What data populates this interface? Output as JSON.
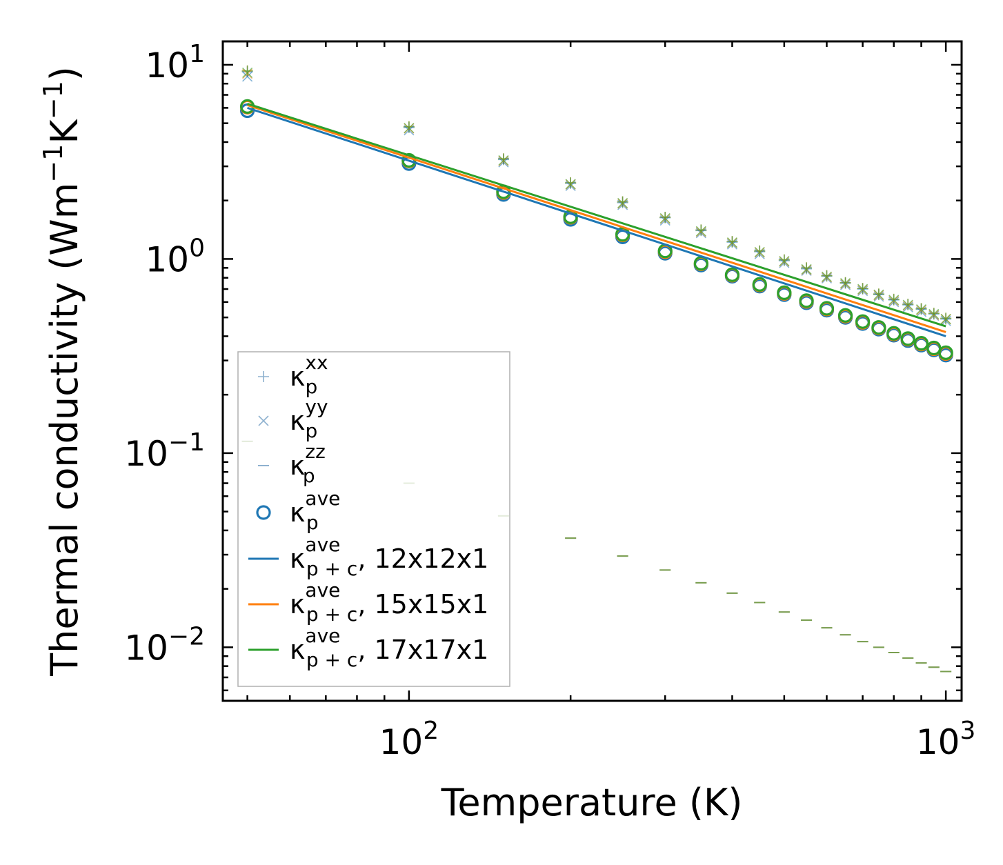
{
  "chart_data": {
    "type": "scatter",
    "xscale": "log",
    "yscale": "log",
    "xlim": [
      45,
      1070
    ],
    "ylim": [
      0.0053,
      13.2
    ],
    "xlabel": "Temperature (K)",
    "ylabel": {
      "text": "Thermal conductivity (Wm",
      "exp1": "−1",
      "mid": "K",
      "exp2": "−1",
      "close": ")"
    },
    "x_ticks": [
      {
        "value": 100,
        "base": "10",
        "exp": "2"
      },
      {
        "value": 1000,
        "base": "10",
        "exp": "3"
      }
    ],
    "y_ticks": [
      {
        "value": 10,
        "base": "10",
        "exp": "1"
      },
      {
        "value": 1,
        "base": "10",
        "exp": "0"
      },
      {
        "value": 0.1,
        "base": "10",
        "exp": "−1"
      },
      {
        "value": 0.01,
        "base": "10",
        "exp": "−2"
      }
    ],
    "x": [
      50,
      100,
      150,
      200,
      250,
      300,
      350,
      400,
      450,
      500,
      550,
      600,
      650,
      700,
      750,
      800,
      850,
      900,
      950,
      1000
    ],
    "series": [
      {
        "name": "kxx",
        "marker": "plus",
        "values": [
          9.2,
          4.75,
          3.25,
          2.45,
          1.95,
          1.63,
          1.4,
          1.22,
          1.09,
          0.98,
          0.89,
          0.815,
          0.75,
          0.7,
          0.655,
          0.615,
          0.58,
          0.55,
          0.52,
          0.49
        ],
        "groups": [
          {
            "color": "#1f77b4",
            "values": [
              9.2,
              4.75,
              3.25,
              2.45,
              1.95,
              1.63,
              1.4,
              1.22,
              1.09,
              0.98,
              0.89,
              0.815,
              0.75,
              0.7,
              0.655,
              0.615,
              0.58,
              0.55,
              0.52,
              0.49
            ]
          },
          {
            "color": "#ff7f0e",
            "values": [
              9.3,
              4.8,
              3.28,
              2.47,
              1.97,
              1.64,
              1.41,
              1.23,
              1.1,
              0.99,
              0.9,
              0.82,
              0.755,
              0.705,
              0.66,
              0.62,
              0.585,
              0.555,
              0.525,
              0.495
            ]
          },
          {
            "color": "#2ca02c",
            "values": [
              9.3,
              4.8,
              3.28,
              2.47,
              1.97,
              1.64,
              1.41,
              1.23,
              1.1,
              0.99,
              0.9,
              0.82,
              0.755,
              0.705,
              0.66,
              0.62,
              0.585,
              0.555,
              0.525,
              0.495
            ]
          }
        ]
      },
      {
        "name": "kyy",
        "marker": "x",
        "values": [
          8.7,
          4.6,
          3.15,
          2.38,
          1.9,
          1.58,
          1.36,
          1.19,
          1.06,
          0.955,
          0.87,
          0.795,
          0.735,
          0.685,
          0.64,
          0.6,
          0.565,
          0.535,
          0.51,
          0.48
        ],
        "groups": [
          {
            "color": "#1f77b4",
            "values": [
              8.7,
              4.6,
              3.15,
              2.38,
              1.9,
              1.58,
              1.36,
              1.19,
              1.06,
              0.955,
              0.87,
              0.795,
              0.735,
              0.685,
              0.64,
              0.6,
              0.565,
              0.535,
              0.51,
              0.48
            ]
          },
          {
            "color": "#ff7f0e",
            "values": [
              9.0,
              4.7,
              3.2,
              2.42,
              1.93,
              1.61,
              1.38,
              1.21,
              1.08,
              0.97,
              0.88,
              0.805,
              0.745,
              0.695,
              0.65,
              0.61,
              0.575,
              0.545,
              0.515,
              0.49
            ]
          },
          {
            "color": "#2ca02c",
            "values": [
              9.1,
              4.72,
              3.22,
              2.43,
              1.94,
              1.62,
              1.39,
              1.215,
              1.085,
              0.975,
              0.885,
              0.81,
              0.75,
              0.7,
              0.655,
              0.615,
              0.58,
              0.55,
              0.52,
              0.49
            ]
          }
        ]
      },
      {
        "name": "kzz",
        "marker": "hline",
        "values": [
          0.115,
          0.07,
          0.0475,
          0.0365,
          0.0295,
          0.025,
          0.0215,
          0.019,
          0.017,
          0.0152,
          0.0138,
          0.0126,
          0.0116,
          0.0107,
          0.01,
          0.0094,
          0.0088,
          0.0083,
          0.0079,
          0.0075
        ],
        "groups": [
          {
            "color": "#1f77b4",
            "values": [
              0.115,
              0.07,
              0.0475,
              0.0365,
              0.0295,
              0.025,
              0.0215,
              0.019,
              0.017,
              0.0152,
              0.0138,
              0.0126,
              0.0116,
              0.0107,
              0.01,
              0.0094,
              0.0088,
              0.0083,
              0.0079,
              0.0075
            ]
          },
          {
            "color": "#ff7f0e",
            "values": [
              0.115,
              0.07,
              0.0475,
              0.0365,
              0.0295,
              0.025,
              0.0215,
              0.019,
              0.017,
              0.0152,
              0.0138,
              0.0126,
              0.0116,
              0.0107,
              0.01,
              0.0094,
              0.0088,
              0.0083,
              0.0079,
              0.0075
            ]
          },
          {
            "color": "#2ca02c",
            "values": [
              0.115,
              0.07,
              0.0475,
              0.0365,
              0.0295,
              0.025,
              0.0215,
              0.019,
              0.017,
              0.0152,
              0.0138,
              0.0126,
              0.0116,
              0.0107,
              0.01,
              0.0094,
              0.0088,
              0.0083,
              0.0079,
              0.0075
            ]
          }
        ]
      },
      {
        "name": "kave",
        "marker": "circle",
        "values": [
          5.8,
          3.1,
          2.15,
          1.6,
          1.3,
          1.07,
          0.93,
          0.815,
          0.725,
          0.655,
          0.595,
          0.545,
          0.5,
          0.465,
          0.435,
          0.405,
          0.38,
          0.36,
          0.34,
          0.32
        ],
        "groups": [
          {
            "color": "#1f77b4",
            "values": [
              5.8,
              3.1,
              2.15,
              1.6,
              1.3,
              1.07,
              0.93,
              0.815,
              0.725,
              0.655,
              0.595,
              0.545,
              0.5,
              0.465,
              0.435,
              0.405,
              0.38,
              0.36,
              0.34,
              0.32
            ]
          },
          {
            "color": "#ff7f0e",
            "values": [
              6.05,
              3.2,
              2.2,
              1.64,
              1.33,
              1.09,
              0.945,
              0.825,
              0.735,
              0.665,
              0.605,
              0.553,
              0.508,
              0.472,
              0.441,
              0.411,
              0.386,
              0.365,
              0.345,
              0.326
            ]
          },
          {
            "color": "#2ca02c",
            "values": [
              6.1,
              3.22,
              2.22,
              1.65,
              1.34,
              1.1,
              0.95,
              0.83,
              0.74,
              0.67,
              0.61,
              0.557,
              0.512,
              0.476,
              0.444,
              0.414,
              0.389,
              0.368,
              0.348,
              0.329
            ]
          }
        ]
      },
      {
        "name": "kpc_12",
        "marker": "line",
        "color": "#1f77b4",
        "x": [
          50,
          1000
        ],
        "values": [
          6.0,
          0.4
        ]
      },
      {
        "name": "kpc_15",
        "marker": "line",
        "color": "#ff7f0e",
        "x": [
          50,
          1000
        ],
        "values": [
          6.2,
          0.42
        ]
      },
      {
        "name": "kpc_17",
        "marker": "line",
        "color": "#2ca02c",
        "x": [
          50,
          1000
        ],
        "values": [
          6.3,
          0.45
        ]
      }
    ],
    "legend": {
      "placement": "lower-left",
      "entries": [
        {
          "marker": "plus",
          "color": "#8eb1cf",
          "base": "κ",
          "sub": "p",
          "sup": "xx",
          "suffix": ""
        },
        {
          "marker": "x",
          "color": "#8eb1cf",
          "base": "κ",
          "sub": "p",
          "sup": "yy",
          "suffix": ""
        },
        {
          "marker": "hline",
          "color": "#8eb1cf",
          "base": "κ",
          "sub": "p",
          "sup": "zz",
          "suffix": ""
        },
        {
          "marker": "circle",
          "color": "#1f77b4",
          "base": "κ",
          "sub": "p",
          "sup": "ave",
          "suffix": ""
        },
        {
          "marker": "line",
          "color": "#1f77b4",
          "base": "κ",
          "sub": "p + c",
          "sup": "ave",
          "suffix": ", 12x12x1"
        },
        {
          "marker": "line",
          "color": "#ff7f0e",
          "base": "κ",
          "sub": "p + c",
          "sup": "ave",
          "suffix": ", 15x15x1"
        },
        {
          "marker": "line",
          "color": "#2ca02c",
          "base": "κ",
          "sub": "p + c",
          "sup": "ave",
          "suffix": ", 17x17x1"
        }
      ]
    }
  }
}
